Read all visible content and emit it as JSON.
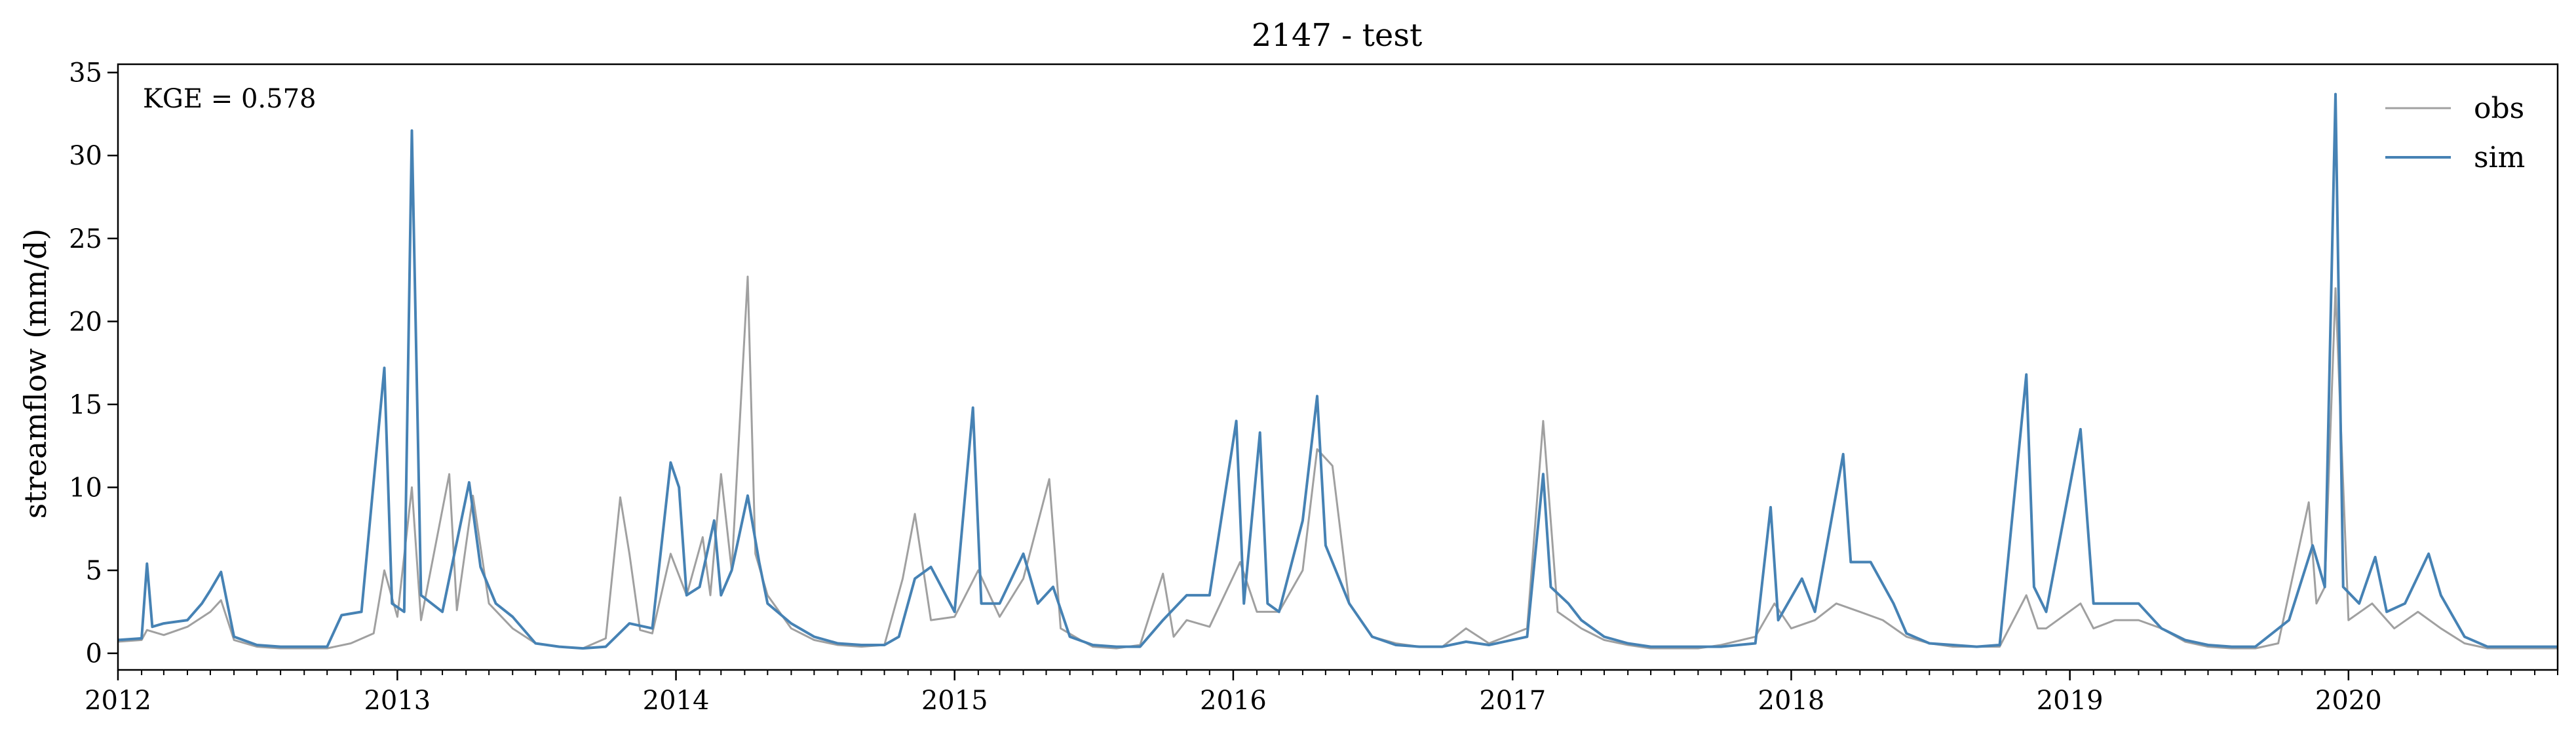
{
  "chart_data": {
    "type": "line",
    "title": "2147 - test",
    "xlabel": "",
    "ylabel": "streamflow (mm/d)",
    "xlim": [
      "2012-01-01",
      "2020-10-01"
    ],
    "ylim": [
      -1,
      35.5
    ],
    "x_ticks": [
      "2012",
      "2013",
      "2014",
      "2015",
      "2016",
      "2017",
      "2018",
      "2019",
      "2020"
    ],
    "y_ticks": [
      0,
      5,
      10,
      15,
      20,
      25,
      30,
      35
    ],
    "grid": false,
    "legend": {
      "placement": "top-right",
      "entries": [
        "obs",
        "sim"
      ]
    },
    "annotation": "KGE = 0.578",
    "series": [
      {
        "name": "obs",
        "color": "#a0a0a0",
        "points": [
          [
            "2012-01-01",
            0.7
          ],
          [
            "2012-02-01",
            0.8
          ],
          [
            "2012-02-08",
            1.4
          ],
          [
            "2012-03-01",
            1.1
          ],
          [
            "2012-04-01",
            1.6
          ],
          [
            "2012-05-01",
            2.5
          ],
          [
            "2012-05-15",
            3.2
          ],
          [
            "2012-06-01",
            0.8
          ],
          [
            "2012-07-01",
            0.4
          ],
          [
            "2012-08-01",
            0.3
          ],
          [
            "2012-09-01",
            0.3
          ],
          [
            "2012-10-01",
            0.3
          ],
          [
            "2012-11-01",
            0.6
          ],
          [
            "2012-12-01",
            1.2
          ],
          [
            "2012-12-15",
            5.0
          ],
          [
            "2013-01-01",
            2.2
          ],
          [
            "2013-01-20",
            10.0
          ],
          [
            "2013-02-01",
            2.0
          ],
          [
            "2013-03-10",
            10.8
          ],
          [
            "2013-03-20",
            2.6
          ],
          [
            "2013-04-10",
            9.5
          ],
          [
            "2013-05-01",
            3.0
          ],
          [
            "2013-06-01",
            1.5
          ],
          [
            "2013-07-01",
            0.6
          ],
          [
            "2013-08-01",
            0.4
          ],
          [
            "2013-09-01",
            0.3
          ],
          [
            "2013-10-01",
            0.9
          ],
          [
            "2013-10-20",
            9.4
          ],
          [
            "2013-11-01",
            6.0
          ],
          [
            "2013-11-15",
            1.4
          ],
          [
            "2013-12-01",
            1.2
          ],
          [
            "2013-12-25",
            6.0
          ],
          [
            "2014-01-15",
            3.5
          ],
          [
            "2014-02-05",
            7.0
          ],
          [
            "2014-02-15",
            3.5
          ],
          [
            "2014-03-01",
            10.8
          ],
          [
            "2014-03-15",
            5.0
          ],
          [
            "2014-04-05",
            22.7
          ],
          [
            "2014-04-15",
            6.0
          ],
          [
            "2014-05-01",
            3.5
          ],
          [
            "2014-06-01",
            1.5
          ],
          [
            "2014-07-01",
            0.8
          ],
          [
            "2014-08-01",
            0.5
          ],
          [
            "2014-09-01",
            0.4
          ],
          [
            "2014-10-01",
            0.5
          ],
          [
            "2014-10-25",
            4.5
          ],
          [
            "2014-11-10",
            8.4
          ],
          [
            "2014-12-01",
            2.0
          ],
          [
            "2015-01-01",
            2.2
          ],
          [
            "2015-02-01",
            5.0
          ],
          [
            "2015-03-01",
            2.2
          ],
          [
            "2015-04-01",
            4.5
          ],
          [
            "2015-05-05",
            10.5
          ],
          [
            "2015-05-20",
            1.5
          ],
          [
            "2015-06-15",
            0.8
          ],
          [
            "2015-07-01",
            0.4
          ],
          [
            "2015-08-01",
            0.3
          ],
          [
            "2015-09-01",
            0.5
          ],
          [
            "2015-10-01",
            4.8
          ],
          [
            "2015-10-15",
            1.0
          ],
          [
            "2015-11-01",
            2.0
          ],
          [
            "2015-12-01",
            1.6
          ],
          [
            "2016-01-10",
            5.5
          ],
          [
            "2016-02-01",
            2.5
          ],
          [
            "2016-03-01",
            2.5
          ],
          [
            "2016-04-01",
            5.0
          ],
          [
            "2016-04-20",
            12.3
          ],
          [
            "2016-05-10",
            11.3
          ],
          [
            "2016-06-01",
            3.0
          ],
          [
            "2016-07-01",
            1.0
          ],
          [
            "2016-08-01",
            0.6
          ],
          [
            "2016-09-01",
            0.4
          ],
          [
            "2016-10-01",
            0.4
          ],
          [
            "2016-11-01",
            1.5
          ],
          [
            "2016-12-01",
            0.6
          ],
          [
            "2017-01-20",
            1.5
          ],
          [
            "2017-02-10",
            14.0
          ],
          [
            "2017-03-01",
            2.5
          ],
          [
            "2017-04-01",
            1.5
          ],
          [
            "2017-05-01",
            0.8
          ],
          [
            "2017-06-01",
            0.5
          ],
          [
            "2017-07-01",
            0.3
          ],
          [
            "2017-08-01",
            0.3
          ],
          [
            "2017-09-01",
            0.3
          ],
          [
            "2017-10-01",
            0.5
          ],
          [
            "2017-11-15",
            1.0
          ],
          [
            "2017-12-10",
            3.0
          ],
          [
            "2018-01-01",
            1.5
          ],
          [
            "2018-02-01",
            2.0
          ],
          [
            "2018-03-01",
            3.0
          ],
          [
            "2018-04-01",
            2.5
          ],
          [
            "2018-05-01",
            2.0
          ],
          [
            "2018-06-01",
            1.0
          ],
          [
            "2018-07-01",
            0.6
          ],
          [
            "2018-08-01",
            0.4
          ],
          [
            "2018-09-01",
            0.4
          ],
          [
            "2018-10-01",
            0.4
          ],
          [
            "2018-11-05",
            3.5
          ],
          [
            "2018-11-20",
            1.5
          ],
          [
            "2018-12-01",
            1.5
          ],
          [
            "2019-01-15",
            3.0
          ],
          [
            "2019-02-01",
            1.5
          ],
          [
            "2019-03-01",
            2.0
          ],
          [
            "2019-04-01",
            2.0
          ],
          [
            "2019-05-01",
            1.5
          ],
          [
            "2019-06-01",
            0.7
          ],
          [
            "2019-07-01",
            0.4
          ],
          [
            "2019-08-01",
            0.3
          ],
          [
            "2019-09-01",
            0.3
          ],
          [
            "2019-10-01",
            0.6
          ],
          [
            "2019-11-10",
            9.1
          ],
          [
            "2019-11-20",
            3.0
          ],
          [
            "2019-12-01",
            4.0
          ],
          [
            "2019-12-15",
            22.0
          ],
          [
            "2020-01-01",
            2.0
          ],
          [
            "2020-02-01",
            3.0
          ],
          [
            "2020-03-01",
            1.5
          ],
          [
            "2020-04-01",
            2.5
          ],
          [
            "2020-05-01",
            1.5
          ],
          [
            "2020-06-01",
            0.6
          ],
          [
            "2020-07-01",
            0.3
          ],
          [
            "2020-08-01",
            0.3
          ],
          [
            "2020-09-01",
            0.3
          ],
          [
            "2020-10-01",
            0.3
          ]
        ]
      },
      {
        "name": "sim",
        "color": "#4682b4",
        "points": [
          [
            "2012-01-01",
            0.8
          ],
          [
            "2012-02-01",
            0.9
          ],
          [
            "2012-02-08",
            5.4
          ],
          [
            "2012-02-15",
            1.6
          ],
          [
            "2012-03-01",
            1.8
          ],
          [
            "2012-04-01",
            2.0
          ],
          [
            "2012-04-20",
            3.0
          ],
          [
            "2012-05-01",
            3.8
          ],
          [
            "2012-05-15",
            4.9
          ],
          [
            "2012-06-01",
            1.0
          ],
          [
            "2012-07-01",
            0.5
          ],
          [
            "2012-08-01",
            0.4
          ],
          [
            "2012-09-01",
            0.4
          ],
          [
            "2012-10-01",
            0.4
          ],
          [
            "2012-10-20",
            2.3
          ],
          [
            "2012-11-15",
            2.5
          ],
          [
            "2012-12-15",
            17.2
          ],
          [
            "2012-12-25",
            3.0
          ],
          [
            "2013-01-10",
            2.5
          ],
          [
            "2013-01-20",
            31.5
          ],
          [
            "2013-02-01",
            3.5
          ],
          [
            "2013-03-01",
            2.5
          ],
          [
            "2013-04-05",
            10.3
          ],
          [
            "2013-04-20",
            5.2
          ],
          [
            "2013-05-10",
            3.0
          ],
          [
            "2013-06-01",
            2.2
          ],
          [
            "2013-07-01",
            0.6
          ],
          [
            "2013-08-01",
            0.4
          ],
          [
            "2013-09-01",
            0.3
          ],
          [
            "2013-10-01",
            0.4
          ],
          [
            "2013-11-01",
            1.8
          ],
          [
            "2013-12-01",
            1.5
          ],
          [
            "2013-12-25",
            11.5
          ],
          [
            "2014-01-05",
            10.0
          ],
          [
            "2014-01-15",
            3.5
          ],
          [
            "2014-02-01",
            4.0
          ],
          [
            "2014-02-20",
            8.0
          ],
          [
            "2014-03-01",
            3.5
          ],
          [
            "2014-03-15",
            5.0
          ],
          [
            "2014-04-05",
            9.5
          ],
          [
            "2014-04-20",
            5.5
          ],
          [
            "2014-05-01",
            3.0
          ],
          [
            "2014-06-01",
            1.8
          ],
          [
            "2014-07-01",
            1.0
          ],
          [
            "2014-08-01",
            0.6
          ],
          [
            "2014-09-01",
            0.5
          ],
          [
            "2014-10-01",
            0.5
          ],
          [
            "2014-10-20",
            1.0
          ],
          [
            "2014-11-10",
            4.5
          ],
          [
            "2014-12-01",
            5.2
          ],
          [
            "2015-01-01",
            2.5
          ],
          [
            "2015-01-25",
            14.8
          ],
          [
            "2015-02-05",
            3.0
          ],
          [
            "2015-03-01",
            3.0
          ],
          [
            "2015-04-01",
            6.0
          ],
          [
            "2015-04-20",
            3.0
          ],
          [
            "2015-05-10",
            4.0
          ],
          [
            "2015-06-01",
            1.0
          ],
          [
            "2015-07-01",
            0.5
          ],
          [
            "2015-08-01",
            0.4
          ],
          [
            "2015-09-01",
            0.4
          ],
          [
            "2015-10-01",
            2.0
          ],
          [
            "2015-11-01",
            3.5
          ],
          [
            "2015-12-01",
            3.5
          ],
          [
            "2016-01-05",
            14.0
          ],
          [
            "2016-01-15",
            3.0
          ],
          [
            "2016-02-05",
            13.3
          ],
          [
            "2016-02-15",
            3.0
          ],
          [
            "2016-03-01",
            2.5
          ],
          [
            "2016-04-01",
            8.0
          ],
          [
            "2016-04-20",
            15.5
          ],
          [
            "2016-05-01",
            6.5
          ],
          [
            "2016-06-01",
            3.0
          ],
          [
            "2016-07-01",
            1.0
          ],
          [
            "2016-08-01",
            0.5
          ],
          [
            "2016-09-01",
            0.4
          ],
          [
            "2016-10-01",
            0.4
          ],
          [
            "2016-11-01",
            0.7
          ],
          [
            "2016-12-01",
            0.5
          ],
          [
            "2017-01-20",
            1.0
          ],
          [
            "2017-02-10",
            10.8
          ],
          [
            "2017-02-20",
            4.0
          ],
          [
            "2017-03-15",
            3.0
          ],
          [
            "2017-04-01",
            2.0
          ],
          [
            "2017-05-01",
            1.0
          ],
          [
            "2017-06-01",
            0.6
          ],
          [
            "2017-07-01",
            0.4
          ],
          [
            "2017-08-01",
            0.4
          ],
          [
            "2017-09-01",
            0.4
          ],
          [
            "2017-10-01",
            0.4
          ],
          [
            "2017-11-15",
            0.6
          ],
          [
            "2017-12-05",
            8.8
          ],
          [
            "2017-12-15",
            2.0
          ],
          [
            "2018-01-15",
            4.5
          ],
          [
            "2018-02-01",
            2.5
          ],
          [
            "2018-03-10",
            12.0
          ],
          [
            "2018-03-20",
            5.5
          ],
          [
            "2018-04-15",
            5.5
          ],
          [
            "2018-05-15",
            3.0
          ],
          [
            "2018-06-01",
            1.2
          ],
          [
            "2018-07-01",
            0.6
          ],
          [
            "2018-08-01",
            0.5
          ],
          [
            "2018-09-01",
            0.4
          ],
          [
            "2018-10-01",
            0.5
          ],
          [
            "2018-11-05",
            16.8
          ],
          [
            "2018-11-15",
            4.0
          ],
          [
            "2018-12-01",
            2.5
          ],
          [
            "2019-01-15",
            13.5
          ],
          [
            "2019-02-01",
            3.0
          ],
          [
            "2019-03-01",
            3.0
          ],
          [
            "2019-04-01",
            3.0
          ],
          [
            "2019-05-01",
            1.5
          ],
          [
            "2019-06-01",
            0.8
          ],
          [
            "2019-07-01",
            0.5
          ],
          [
            "2019-08-01",
            0.4
          ],
          [
            "2019-09-01",
            0.4
          ],
          [
            "2019-10-15",
            2.0
          ],
          [
            "2019-11-15",
            6.5
          ],
          [
            "2019-12-01",
            4.0
          ],
          [
            "2019-12-15",
            33.7
          ],
          [
            "2019-12-25",
            4.0
          ],
          [
            "2020-01-15",
            3.0
          ],
          [
            "2020-02-05",
            5.8
          ],
          [
            "2020-02-20",
            2.5
          ],
          [
            "2020-03-15",
            3.0
          ],
          [
            "2020-04-15",
            6.0
          ],
          [
            "2020-05-01",
            3.5
          ],
          [
            "2020-06-01",
            1.0
          ],
          [
            "2020-07-01",
            0.4
          ],
          [
            "2020-08-01",
            0.4
          ],
          [
            "2020-09-01",
            0.4
          ],
          [
            "2020-10-01",
            0.4
          ]
        ]
      }
    ]
  }
}
